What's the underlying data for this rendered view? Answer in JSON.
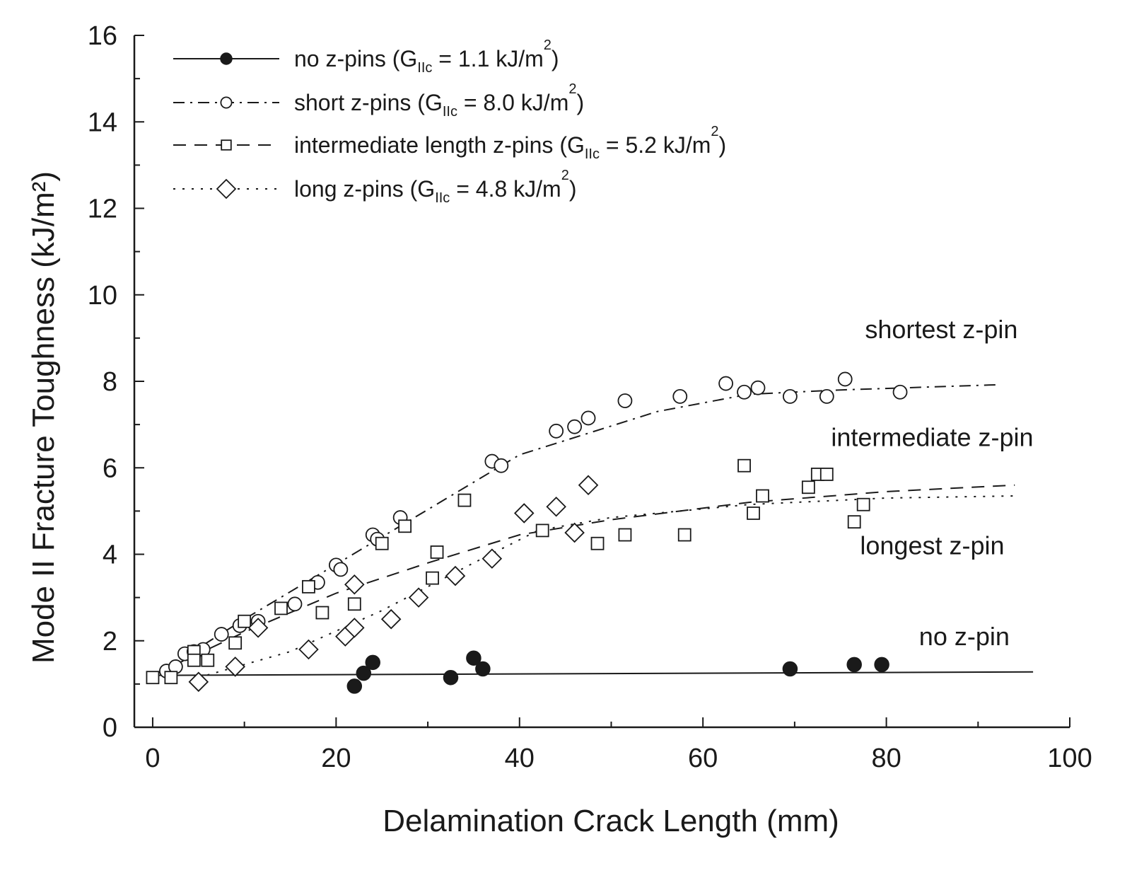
{
  "chart_data": {
    "type": "scatter",
    "xlabel": "Delamination Crack Length (mm)",
    "ylabel": "Mode II Fracture Toughness (kJ/m²)",
    "xlim": [
      -2,
      100
    ],
    "ylim": [
      0,
      16
    ],
    "x_ticks": [
      0,
      20,
      40,
      60,
      80,
      100
    ],
    "y_ticks": [
      0,
      2,
      4,
      6,
      8,
      10,
      12,
      14,
      16
    ],
    "grid": false,
    "legend_position": "top-left",
    "series": [
      {
        "name": "no z-pins (G",
        "name_sub": "IIc",
        "name_rest": " = 1.1 kJ/m",
        "name_sup": "2",
        "name_end": ")",
        "marker": "filled-circle",
        "line_style": "solid",
        "points": [
          [
            22,
            0.95
          ],
          [
            23,
            1.25
          ],
          [
            24,
            1.5
          ],
          [
            32.5,
            1.15
          ],
          [
            35,
            1.6
          ],
          [
            36,
            1.35
          ],
          [
            69.5,
            1.35
          ],
          [
            76.5,
            1.45
          ],
          [
            79.5,
            1.45
          ]
        ],
        "fit": [
          [
            0,
            1.2
          ],
          [
            96,
            1.28
          ]
        ]
      },
      {
        "name": "short z-pins (G",
        "name_sub": "IIc",
        "name_rest": " = 8.0 kJ/m",
        "name_sup": "2",
        "name_end": ")",
        "marker": "open-circle",
        "line_style": "dash-dot",
        "points": [
          [
            1.5,
            1.3
          ],
          [
            2.5,
            1.4
          ],
          [
            3.5,
            1.7
          ],
          [
            4.5,
            1.75
          ],
          [
            5.5,
            1.8
          ],
          [
            7.5,
            2.15
          ],
          [
            9.5,
            2.35
          ],
          [
            11.5,
            2.45
          ],
          [
            15.5,
            2.85
          ],
          [
            18,
            3.35
          ],
          [
            20,
            3.75
          ],
          [
            20.5,
            3.65
          ],
          [
            24,
            4.45
          ],
          [
            24.5,
            4.35
          ],
          [
            27,
            4.85
          ],
          [
            37,
            6.15
          ],
          [
            38,
            6.05
          ],
          [
            44,
            6.85
          ],
          [
            46,
            6.95
          ],
          [
            47.5,
            7.15
          ],
          [
            51.5,
            7.55
          ],
          [
            57.5,
            7.65
          ],
          [
            62.5,
            7.95
          ],
          [
            64.5,
            7.75
          ],
          [
            66,
            7.85
          ],
          [
            69.5,
            7.65
          ],
          [
            73.5,
            7.65
          ],
          [
            75.5,
            8.05
          ],
          [
            81.5,
            7.75
          ]
        ],
        "fit": [
          [
            1,
            1.3
          ],
          [
            10,
            2.5
          ],
          [
            25,
            4.4
          ],
          [
            40,
            6.3
          ],
          [
            55,
            7.3
          ],
          [
            65,
            7.7
          ],
          [
            75,
            7.8
          ],
          [
            92,
            7.92
          ]
        ]
      },
      {
        "name": "intermediate length z-pins (G",
        "name_sub": "IIc",
        "name_rest": " = 5.2 kJ/m",
        "name_sup": "2",
        "name_end": ")",
        "marker": "open-square",
        "line_style": "dashed",
        "points": [
          [
            0,
            1.15
          ],
          [
            2,
            1.15
          ],
          [
            4.5,
            1.75
          ],
          [
            4.5,
            1.55
          ],
          [
            6,
            1.55
          ],
          [
            10,
            2.45
          ],
          [
            9,
            1.95
          ],
          [
            14,
            2.75
          ],
          [
            17,
            3.25
          ],
          [
            18.5,
            2.65
          ],
          [
            22,
            2.85
          ],
          [
            25,
            4.25
          ],
          [
            27.5,
            4.65
          ],
          [
            30.5,
            3.45
          ],
          [
            31,
            4.05
          ],
          [
            34,
            5.25
          ],
          [
            42.5,
            4.55
          ],
          [
            48.5,
            4.25
          ],
          [
            51.5,
            4.45
          ],
          [
            58,
            4.45
          ],
          [
            64.5,
            6.05
          ],
          [
            65.5,
            4.95
          ],
          [
            66.5,
            5.35
          ],
          [
            71.5,
            5.55
          ],
          [
            72.5,
            5.85
          ],
          [
            73.5,
            5.85
          ],
          [
            76.5,
            4.75
          ],
          [
            77.5,
            5.15
          ]
        ],
        "fit": [
          [
            0,
            1.2
          ],
          [
            10,
            2.2
          ],
          [
            20,
            3.1
          ],
          [
            30,
            3.8
          ],
          [
            40,
            4.45
          ],
          [
            50,
            4.8
          ],
          [
            65,
            5.2
          ],
          [
            80,
            5.45
          ],
          [
            94,
            5.6
          ]
        ]
      },
      {
        "name": "long z-pins (G",
        "name_sub": "IIc",
        "name_rest": " = 4.8 kJ/m",
        "name_sup": "2",
        "name_end": ")",
        "marker": "open-diamond",
        "line_style": "dotted",
        "points": [
          [
            5,
            1.05
          ],
          [
            9,
            1.4
          ],
          [
            11.5,
            2.3
          ],
          [
            17,
            1.8
          ],
          [
            21,
            2.1
          ],
          [
            22,
            2.3
          ],
          [
            22,
            3.3
          ],
          [
            26,
            2.5
          ],
          [
            29,
            3.0
          ],
          [
            33,
            3.5
          ],
          [
            37,
            3.9
          ],
          [
            40.5,
            4.95
          ],
          [
            44,
            5.1
          ],
          [
            46,
            4.5
          ],
          [
            47.5,
            5.6
          ]
        ],
        "fit": [
          [
            5,
            1.15
          ],
          [
            15,
            1.75
          ],
          [
            25,
            2.7
          ],
          [
            35,
            3.8
          ],
          [
            42,
            4.55
          ],
          [
            50,
            4.85
          ],
          [
            65,
            5.15
          ],
          [
            80,
            5.3
          ],
          [
            94,
            5.35
          ]
        ]
      }
    ],
    "annotations": [
      {
        "text": "shortest z-pin",
        "x": 86,
        "y": 9.0
      },
      {
        "text": "intermediate z-pin",
        "x": 85,
        "y": 6.5
      },
      {
        "text": "longest z-pin",
        "x": 85,
        "y": 4.0
      },
      {
        "text": "no z-pin",
        "x": 88.5,
        "y": 1.9
      }
    ]
  }
}
